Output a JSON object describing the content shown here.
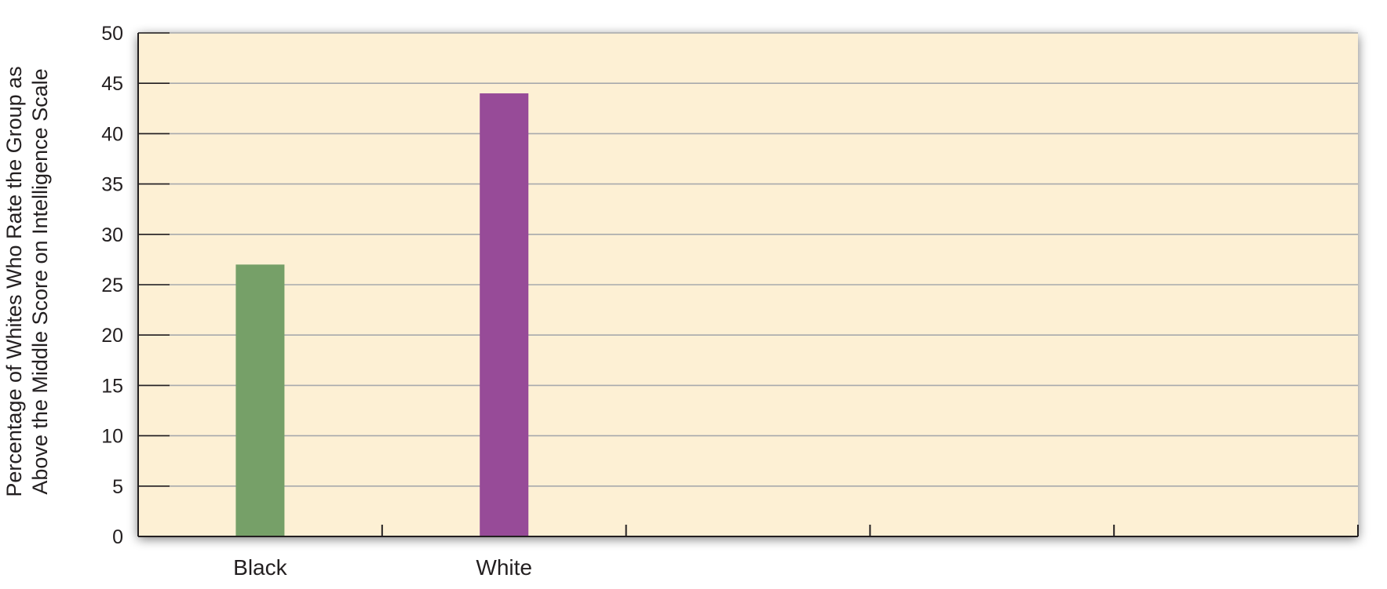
{
  "chart_data": {
    "type": "bar",
    "categories": [
      "Black",
      "White",
      "",
      "",
      ""
    ],
    "values": [
      27,
      44,
      null,
      null,
      null
    ],
    "ylabel_lines": [
      "Percentage of Whites Who Rate the Group as",
      "Above the Middle Score on Intelligence Scale"
    ],
    "ylim": [
      0,
      50
    ],
    "yticks": [
      0,
      5,
      10,
      15,
      20,
      25,
      30,
      35,
      40,
      45,
      50
    ],
    "grid": true,
    "legend": "none"
  },
  "colors": {
    "plot_background": "#fdf0d4",
    "gridline": "#a7a9ac",
    "axis": "#231f20",
    "bars": [
      "#76a068",
      "#974b98"
    ]
  }
}
